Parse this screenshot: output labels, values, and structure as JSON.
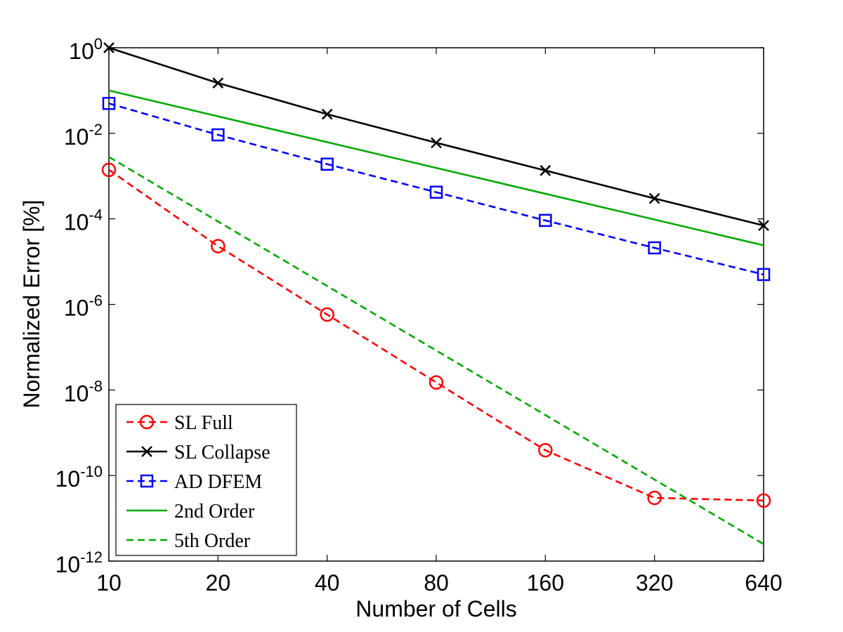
{
  "chart_data": {
    "type": "line",
    "xlabel": "Number of Cells",
    "ylabel": "Normalized Error [%]",
    "x_scale": "log2",
    "y_scale": "log10",
    "xlim": [
      10,
      640
    ],
    "ylim": [
      1e-12,
      1
    ],
    "x_ticks": [
      10,
      20,
      40,
      80,
      160,
      320,
      640
    ],
    "x_tick_labels": [
      "10",
      "20",
      "40",
      "80",
      "160",
      "320",
      "640"
    ],
    "y_ticks": [
      {
        "value": 1e-12,
        "base": "10",
        "exp": "-12"
      },
      {
        "value": 1e-10,
        "base": "10",
        "exp": "-10"
      },
      {
        "value": 1e-08,
        "base": "10",
        "exp": "-8"
      },
      {
        "value": 1e-06,
        "base": "10",
        "exp": "-6"
      },
      {
        "value": 0.0001,
        "base": "10",
        "exp": "-4"
      },
      {
        "value": 0.01,
        "base": "10",
        "exp": "-2"
      },
      {
        "value": 1,
        "base": "10",
        "exp": "0"
      }
    ],
    "grid": false,
    "legend_position": "bottom-left",
    "series": [
      {
        "name": "SL Full",
        "color": "#ff0000",
        "line_style": "dashed",
        "marker": "circle",
        "x": [
          10,
          20,
          40,
          80,
          160,
          320,
          640
        ],
        "y": [
          0.0014,
          2.3e-05,
          5.8e-07,
          1.5e-08,
          3.9e-10,
          3e-11,
          2.6e-11
        ]
      },
      {
        "name": "SL Collapse",
        "color": "#000000",
        "line_style": "solid",
        "marker": "x",
        "x": [
          10,
          20,
          40,
          80,
          160,
          320,
          640
        ],
        "y": [
          1.0,
          0.15,
          0.028,
          0.006,
          0.00135,
          0.0003,
          7e-05
        ]
      },
      {
        "name": "AD DFEM",
        "color": "#0000ff",
        "line_style": "dashed",
        "marker": "square",
        "x": [
          10,
          20,
          40,
          80,
          160,
          320,
          640
        ],
        "y": [
          0.05,
          0.0092,
          0.0019,
          0.00042,
          9.2e-05,
          2.1e-05,
          5e-06
        ]
      },
      {
        "name": "2nd Order",
        "color": "#00aa00",
        "line_style": "solid",
        "marker": "none",
        "x": [
          10,
          640
        ],
        "y": [
          0.1,
          2.4e-05
        ]
      },
      {
        "name": "5th Order",
        "color": "#00aa00",
        "line_style": "dashed",
        "marker": "none",
        "x": [
          10,
          640
        ],
        "y": [
          0.0028,
          2.5e-12
        ]
      }
    ]
  }
}
